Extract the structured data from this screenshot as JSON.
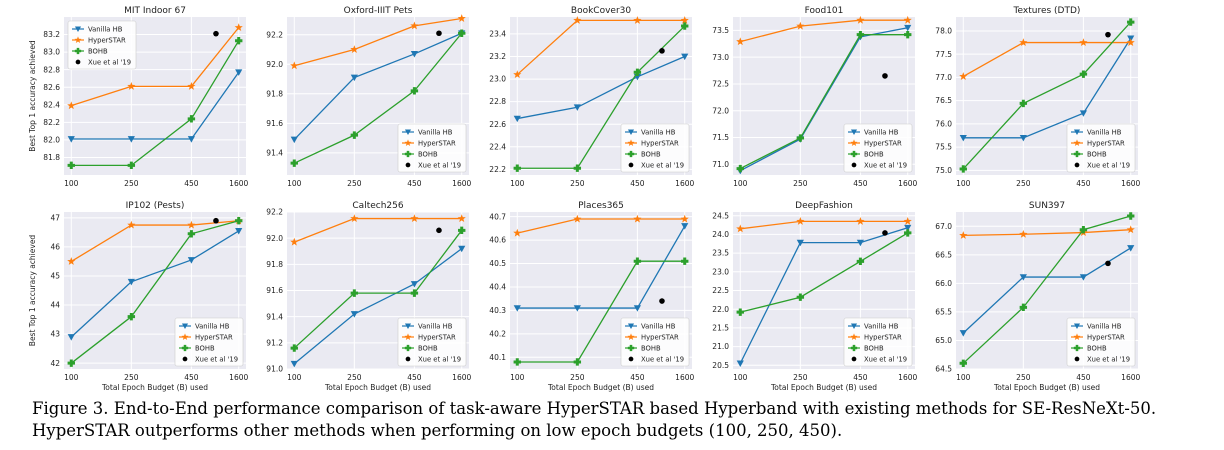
{
  "legend_labels": [
    "Vanilla HB",
    "HyperSTAR",
    "BOHB",
    "Xue et al '19"
  ],
  "colors": {
    "vanilla": "#1f77b4",
    "hyperstar": "#ff7f0e",
    "bohb": "#2ca02c",
    "xue": "#000000",
    "plot_bg": "#eaeaf2",
    "grid": "#ffffff"
  },
  "shared": {
    "xlabel": "Total Epoch Budget (B) used",
    "ylabel": "Best Top 1 accuracy achieved",
    "x_ticks": [
      "100",
      "250",
      "450",
      "1600"
    ],
    "xue_x_position": 900
  },
  "caption": {
    "line1": "Figure 3. End-to-End performance comparison of task-aware HyperSTAR based Hyperband with existing methods for SE-ResNeXt-50.",
    "line2": "HyperSTAR outperforms other methods when performing on low epoch budgets (100, 250, 450)."
  },
  "chart_data": [
    {
      "type": "line",
      "title": "MIT Indoor 67",
      "legend": "top-left",
      "ylim": [
        81.6,
        83.4
      ],
      "y_ticks": [
        "81.8",
        "82.0",
        "82.2",
        "82.4",
        "82.6",
        "82.8",
        "83.0",
        "83.2"
      ],
      "categories": [
        "100",
        "250",
        "450",
        "1600"
      ],
      "series": [
        {
          "name": "Vanilla HB",
          "values": [
            82.01,
            82.01,
            82.01,
            82.77
          ]
        },
        {
          "name": "HyperSTAR",
          "values": [
            82.39,
            82.61,
            82.61,
            83.28
          ]
        },
        {
          "name": "BOHB",
          "values": [
            81.71,
            81.71,
            82.24,
            83.13
          ]
        }
      ],
      "xue_value": 83.21
    },
    {
      "type": "line",
      "title": "Oxford-IIIT Pets",
      "legend": "bottom-right",
      "ylim": [
        91.25,
        92.32
      ],
      "y_ticks": [
        "91.4",
        "91.6",
        "91.8",
        "92.0",
        "92.2"
      ],
      "categories": [
        "100",
        "250",
        "450",
        "1600"
      ],
      "series": [
        {
          "name": "Vanilla HB",
          "values": [
            91.49,
            91.91,
            92.07,
            92.21
          ]
        },
        {
          "name": "HyperSTAR",
          "values": [
            91.99,
            92.1,
            92.26,
            92.31
          ]
        },
        {
          "name": "BOHB",
          "values": [
            91.33,
            91.52,
            91.82,
            92.21
          ]
        }
      ],
      "xue_value": 92.21
    },
    {
      "type": "line",
      "title": "BookCover30",
      "legend": "bottom-right",
      "ylim": [
        22.15,
        23.55
      ],
      "y_ticks": [
        "22.2",
        "22.4",
        "22.6",
        "22.8",
        "23.0",
        "23.2",
        "23.4"
      ],
      "categories": [
        "100",
        "250",
        "450",
        "1600"
      ],
      "series": [
        {
          "name": "Vanilla HB",
          "values": [
            22.65,
            22.75,
            23.02,
            23.2
          ]
        },
        {
          "name": "HyperSTAR",
          "values": [
            23.04,
            23.52,
            23.52,
            23.52
          ]
        },
        {
          "name": "BOHB",
          "values": [
            22.21,
            22.21,
            23.06,
            23.47
          ]
        }
      ],
      "xue_value": 23.25
    },
    {
      "type": "line",
      "title": "Food101",
      "legend": "bottom-right",
      "ylim": [
        70.8,
        73.75
      ],
      "y_ticks": [
        "71.0",
        "71.5",
        "72.0",
        "72.5",
        "73.0",
        "73.5"
      ],
      "categories": [
        "100",
        "250",
        "450",
        "1600"
      ],
      "series": [
        {
          "name": "Vanilla HB",
          "values": [
            70.88,
            71.47,
            73.38,
            73.55
          ]
        },
        {
          "name": "HyperSTAR",
          "values": [
            73.29,
            73.58,
            73.69,
            73.69
          ]
        },
        {
          "name": "BOHB",
          "values": [
            70.92,
            71.49,
            73.42,
            73.42
          ]
        }
      ],
      "xue_value": 72.65
    },
    {
      "type": "line",
      "title": "Textures (DTD)",
      "legend": "bottom-right",
      "ylim": [
        74.9,
        78.3
      ],
      "y_ticks": [
        "75.0",
        "75.5",
        "76.0",
        "76.5",
        "77.0",
        "77.5",
        "78.0"
      ],
      "categories": [
        "100",
        "250",
        "450",
        "1600"
      ],
      "series": [
        {
          "name": "Vanilla HB",
          "values": [
            75.7,
            75.7,
            76.23,
            77.84
          ]
        },
        {
          "name": "HyperSTAR",
          "values": [
            77.02,
            77.75,
            77.75,
            77.75
          ]
        },
        {
          "name": "BOHB",
          "values": [
            75.03,
            76.44,
            77.07,
            78.19
          ]
        }
      ],
      "xue_value": 77.92
    },
    {
      "type": "line",
      "title": "IP102 (Pests)",
      "legend": "bottom-right",
      "ylim": [
        41.8,
        47.2
      ],
      "y_ticks": [
        "42",
        "43",
        "44",
        "45",
        "46",
        "47"
      ],
      "categories": [
        "100",
        "250",
        "450",
        "1600"
      ],
      "series": [
        {
          "name": "Vanilla HB",
          "values": [
            42.9,
            44.8,
            45.55,
            46.55
          ]
        },
        {
          "name": "HyperSTAR",
          "values": [
            45.5,
            46.75,
            46.75,
            46.9
          ]
        },
        {
          "name": "BOHB",
          "values": [
            42.0,
            43.6,
            46.45,
            46.9
          ]
        }
      ],
      "xue_value": 46.9
    },
    {
      "type": "line",
      "title": "Caltech256",
      "legend": "bottom-right",
      "ylim": [
        91.0,
        92.2
      ],
      "y_ticks": [
        "91.0",
        "91.2",
        "91.4",
        "91.6",
        "91.8",
        "92.0",
        "92.2"
      ],
      "categories": [
        "100",
        "250",
        "450",
        "1600"
      ],
      "series": [
        {
          "name": "Vanilla HB",
          "values": [
            91.04,
            91.42,
            91.65,
            91.92
          ]
        },
        {
          "name": "HyperSTAR",
          "values": [
            91.97,
            92.15,
            92.15,
            92.15
          ]
        },
        {
          "name": "BOHB",
          "values": [
            91.16,
            91.58,
            91.58,
            92.06
          ]
        }
      ],
      "xue_value": 92.06
    },
    {
      "type": "line",
      "title": "Places365",
      "legend": "bottom-right",
      "ylim": [
        40.05,
        40.72
      ],
      "y_ticks": [
        "40.1",
        "40.2",
        "40.3",
        "40.4",
        "40.5",
        "40.6",
        "40.7"
      ],
      "categories": [
        "100",
        "250",
        "450",
        "1600"
      ],
      "series": [
        {
          "name": "Vanilla HB",
          "values": [
            40.31,
            40.31,
            40.31,
            40.66
          ]
        },
        {
          "name": "HyperSTAR",
          "values": [
            40.63,
            40.69,
            40.69,
            40.69
          ]
        },
        {
          "name": "BOHB",
          "values": [
            40.08,
            40.08,
            40.51,
            40.51
          ]
        }
      ],
      "xue_value": 40.34
    },
    {
      "type": "line",
      "title": "DeepFashion",
      "legend": "bottom-right",
      "ylim": [
        20.4,
        24.6
      ],
      "y_ticks": [
        "20.5",
        "21.0",
        "21.5",
        "22.0",
        "22.5",
        "23.0",
        "23.5",
        "24.0",
        "24.5"
      ],
      "categories": [
        "100",
        "250",
        "450",
        "1600"
      ],
      "series": [
        {
          "name": "Vanilla HB",
          "values": [
            20.55,
            23.78,
            23.78,
            24.18
          ]
        },
        {
          "name": "HyperSTAR",
          "values": [
            24.15,
            24.35,
            24.35,
            24.35
          ]
        },
        {
          "name": "BOHB",
          "values": [
            21.92,
            22.32,
            23.28,
            24.04
          ]
        }
      ],
      "xue_value": 24.04
    },
    {
      "type": "line",
      "title": "SUN397",
      "legend": "bottom-right",
      "ylim": [
        64.5,
        67.25
      ],
      "y_ticks": [
        "64.5",
        "65.0",
        "65.5",
        "66.0",
        "66.5",
        "67.0"
      ],
      "categories": [
        "100",
        "250",
        "450",
        "1600"
      ],
      "series": [
        {
          "name": "Vanilla HB",
          "values": [
            65.13,
            66.11,
            66.11,
            66.62
          ]
        },
        {
          "name": "HyperSTAR",
          "values": [
            66.84,
            66.86,
            66.89,
            66.94
          ]
        },
        {
          "name": "BOHB",
          "values": [
            64.6,
            65.58,
            66.94,
            67.18
          ]
        }
      ],
      "xue_value": 66.35
    }
  ]
}
